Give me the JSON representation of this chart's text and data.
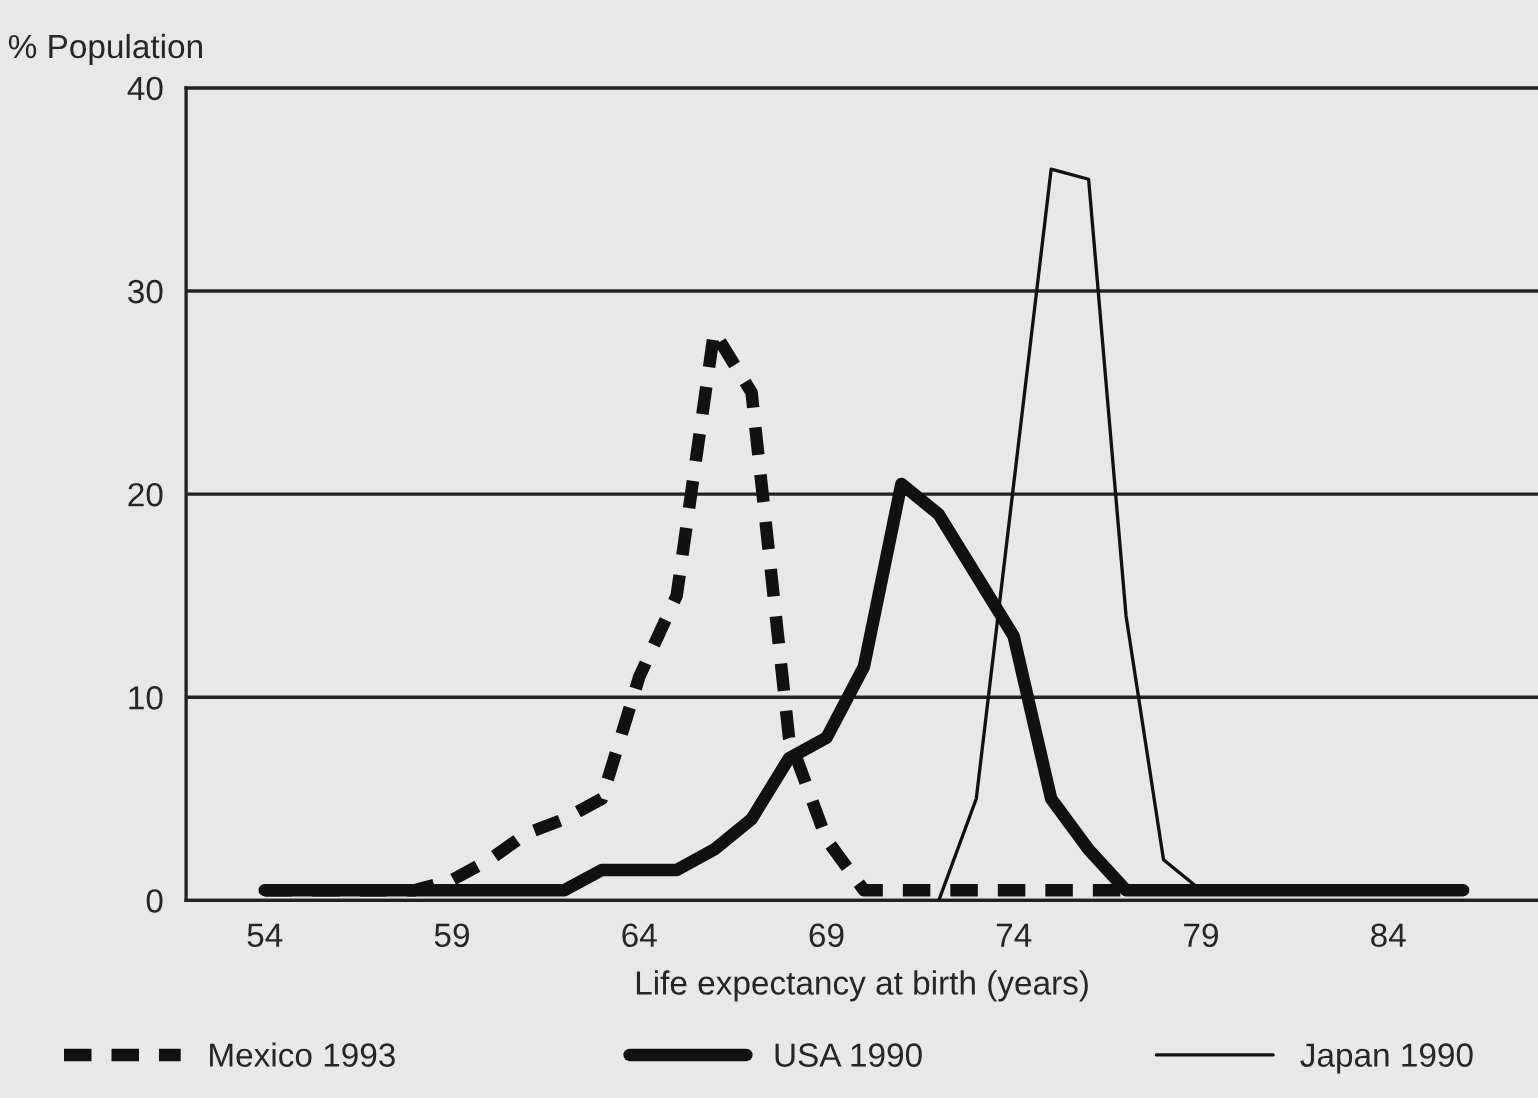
{
  "chart_data": {
    "type": "line",
    "xlabel": "Life expectancy at birth (years)",
    "ylabel": "% Population",
    "x": [
      54,
      55,
      56,
      57,
      58,
      59,
      60,
      61,
      62,
      63,
      64,
      65,
      66,
      67,
      68,
      69,
      70,
      71,
      72,
      73,
      74,
      75,
      76,
      77,
      78,
      79,
      80,
      81,
      82,
      83,
      84,
      85,
      86
    ],
    "series": [
      {
        "name": "Mexico 1993",
        "color": "#111111",
        "line_style": "dashed",
        "values": [
          0.5,
          0.5,
          0.5,
          0.5,
          0.5,
          1,
          2,
          3.3,
          4,
          5,
          11,
          15,
          28,
          25,
          8,
          3,
          0.5,
          0.5,
          0.5,
          0.5,
          0.5,
          0.5,
          0.5,
          0.5,
          null,
          null,
          null,
          null,
          null,
          null,
          null,
          null,
          null
        ]
      },
      {
        "name": "USA 1990",
        "color": "#111111",
        "line_style": "solid",
        "values": [
          0.5,
          0.5,
          0.5,
          0.5,
          0.5,
          0.5,
          0.5,
          0.5,
          0.5,
          1.5,
          1.5,
          1.5,
          2.5,
          4,
          7,
          8,
          11.5,
          20.5,
          19,
          16,
          13,
          5,
          2.5,
          0.5,
          0.5,
          0.5,
          0.5,
          0.5,
          0.5,
          0.5,
          0.5,
          0.5,
          0.5
        ]
      },
      {
        "name": "Japan 1990",
        "color": "#111111",
        "line_style": "solid",
        "values": [
          null,
          null,
          null,
          null,
          null,
          null,
          null,
          null,
          null,
          null,
          null,
          null,
          null,
          null,
          null,
          null,
          null,
          null,
          0,
          5,
          20.5,
          36,
          35.5,
          14,
          2,
          0.5,
          0.5,
          0.5,
          0.5,
          0.5,
          0.5,
          0.5,
          0.5
        ]
      }
    ],
    "xlim": [
      51.9,
      88
    ],
    "xticks": [
      54,
      59,
      64,
      69,
      74,
      79,
      84
    ],
    "ylim": [
      0,
      40
    ],
    "yticks": [
      0,
      10,
      20,
      30,
      40
    ],
    "grid": "y",
    "legend": "bottom"
  }
}
